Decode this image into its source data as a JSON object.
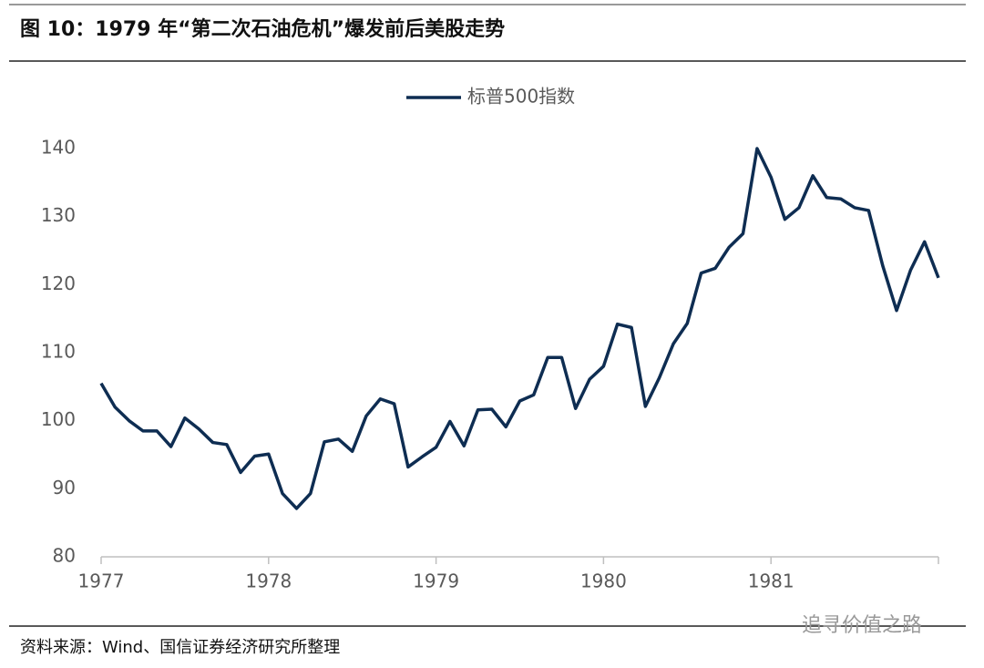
{
  "figure_title": "图 10：1979 年“第二次石油危机”爆发前后美股走势",
  "source": "资料来源：Wind、国信证券经济研究所整理",
  "watermark": "追寻价值之路",
  "chart_data": {
    "type": "line",
    "x": [
      1977,
      1977.083,
      1977.167,
      1977.25,
      1977.333,
      1977.417,
      1977.5,
      1977.583,
      1977.667,
      1977.75,
      1977.833,
      1977.917,
      1978,
      1978.083,
      1978.167,
      1978.25,
      1978.333,
      1978.417,
      1978.5,
      1978.583,
      1978.667,
      1978.75,
      1978.833,
      1978.917,
      1979,
      1979.083,
      1979.167,
      1979.25,
      1979.333,
      1979.417,
      1979.5,
      1979.583,
      1979.667,
      1979.75,
      1979.833,
      1979.917,
      1980,
      1980.083,
      1980.167,
      1980.25,
      1980.333,
      1980.417,
      1980.5,
      1980.583,
      1980.667,
      1980.75,
      1980.833,
      1980.917,
      1981,
      1981.083,
      1981.167,
      1981.25,
      1981.333,
      1981.417,
      1981.5,
      1981.583,
      1981.667,
      1981.75,
      1981.833,
      1981.917,
      1982
    ],
    "series": [
      {
        "name": "标普500指数",
        "color": "#0e2d52",
        "values": [
          105.5,
          102,
          100,
          98.5,
          98.5,
          96.2,
          100.4,
          98.8,
          96.8,
          96.5,
          92.4,
          94.8,
          95.1,
          89.3,
          87.1,
          89.3,
          96.9,
          97.3,
          95.5,
          100.7,
          103.2,
          102.5,
          93.2,
          94.7,
          96.1,
          99.9,
          96.3,
          101.6,
          101.7,
          99.1,
          102.9,
          103.8,
          109.3,
          109.3,
          101.8,
          106.1,
          108,
          114.2,
          113.7,
          102.1,
          106.3,
          111.3,
          114.3,
          121.7,
          122.4,
          125.5,
          127.5,
          140,
          135.8,
          129.6,
          131.3,
          136,
          132.8,
          132.6,
          131.3,
          130.9,
          122.8,
          116.2,
          122.1,
          126.3,
          121
        ]
      }
    ],
    "xlim": [
      1977,
      1982
    ],
    "xticks": [
      1977,
      1978,
      1979,
      1980,
      1981
    ],
    "ylim": [
      80,
      140
    ],
    "yticks": [
      80,
      90,
      100,
      110,
      120,
      130,
      140
    ],
    "legend": "top"
  }
}
